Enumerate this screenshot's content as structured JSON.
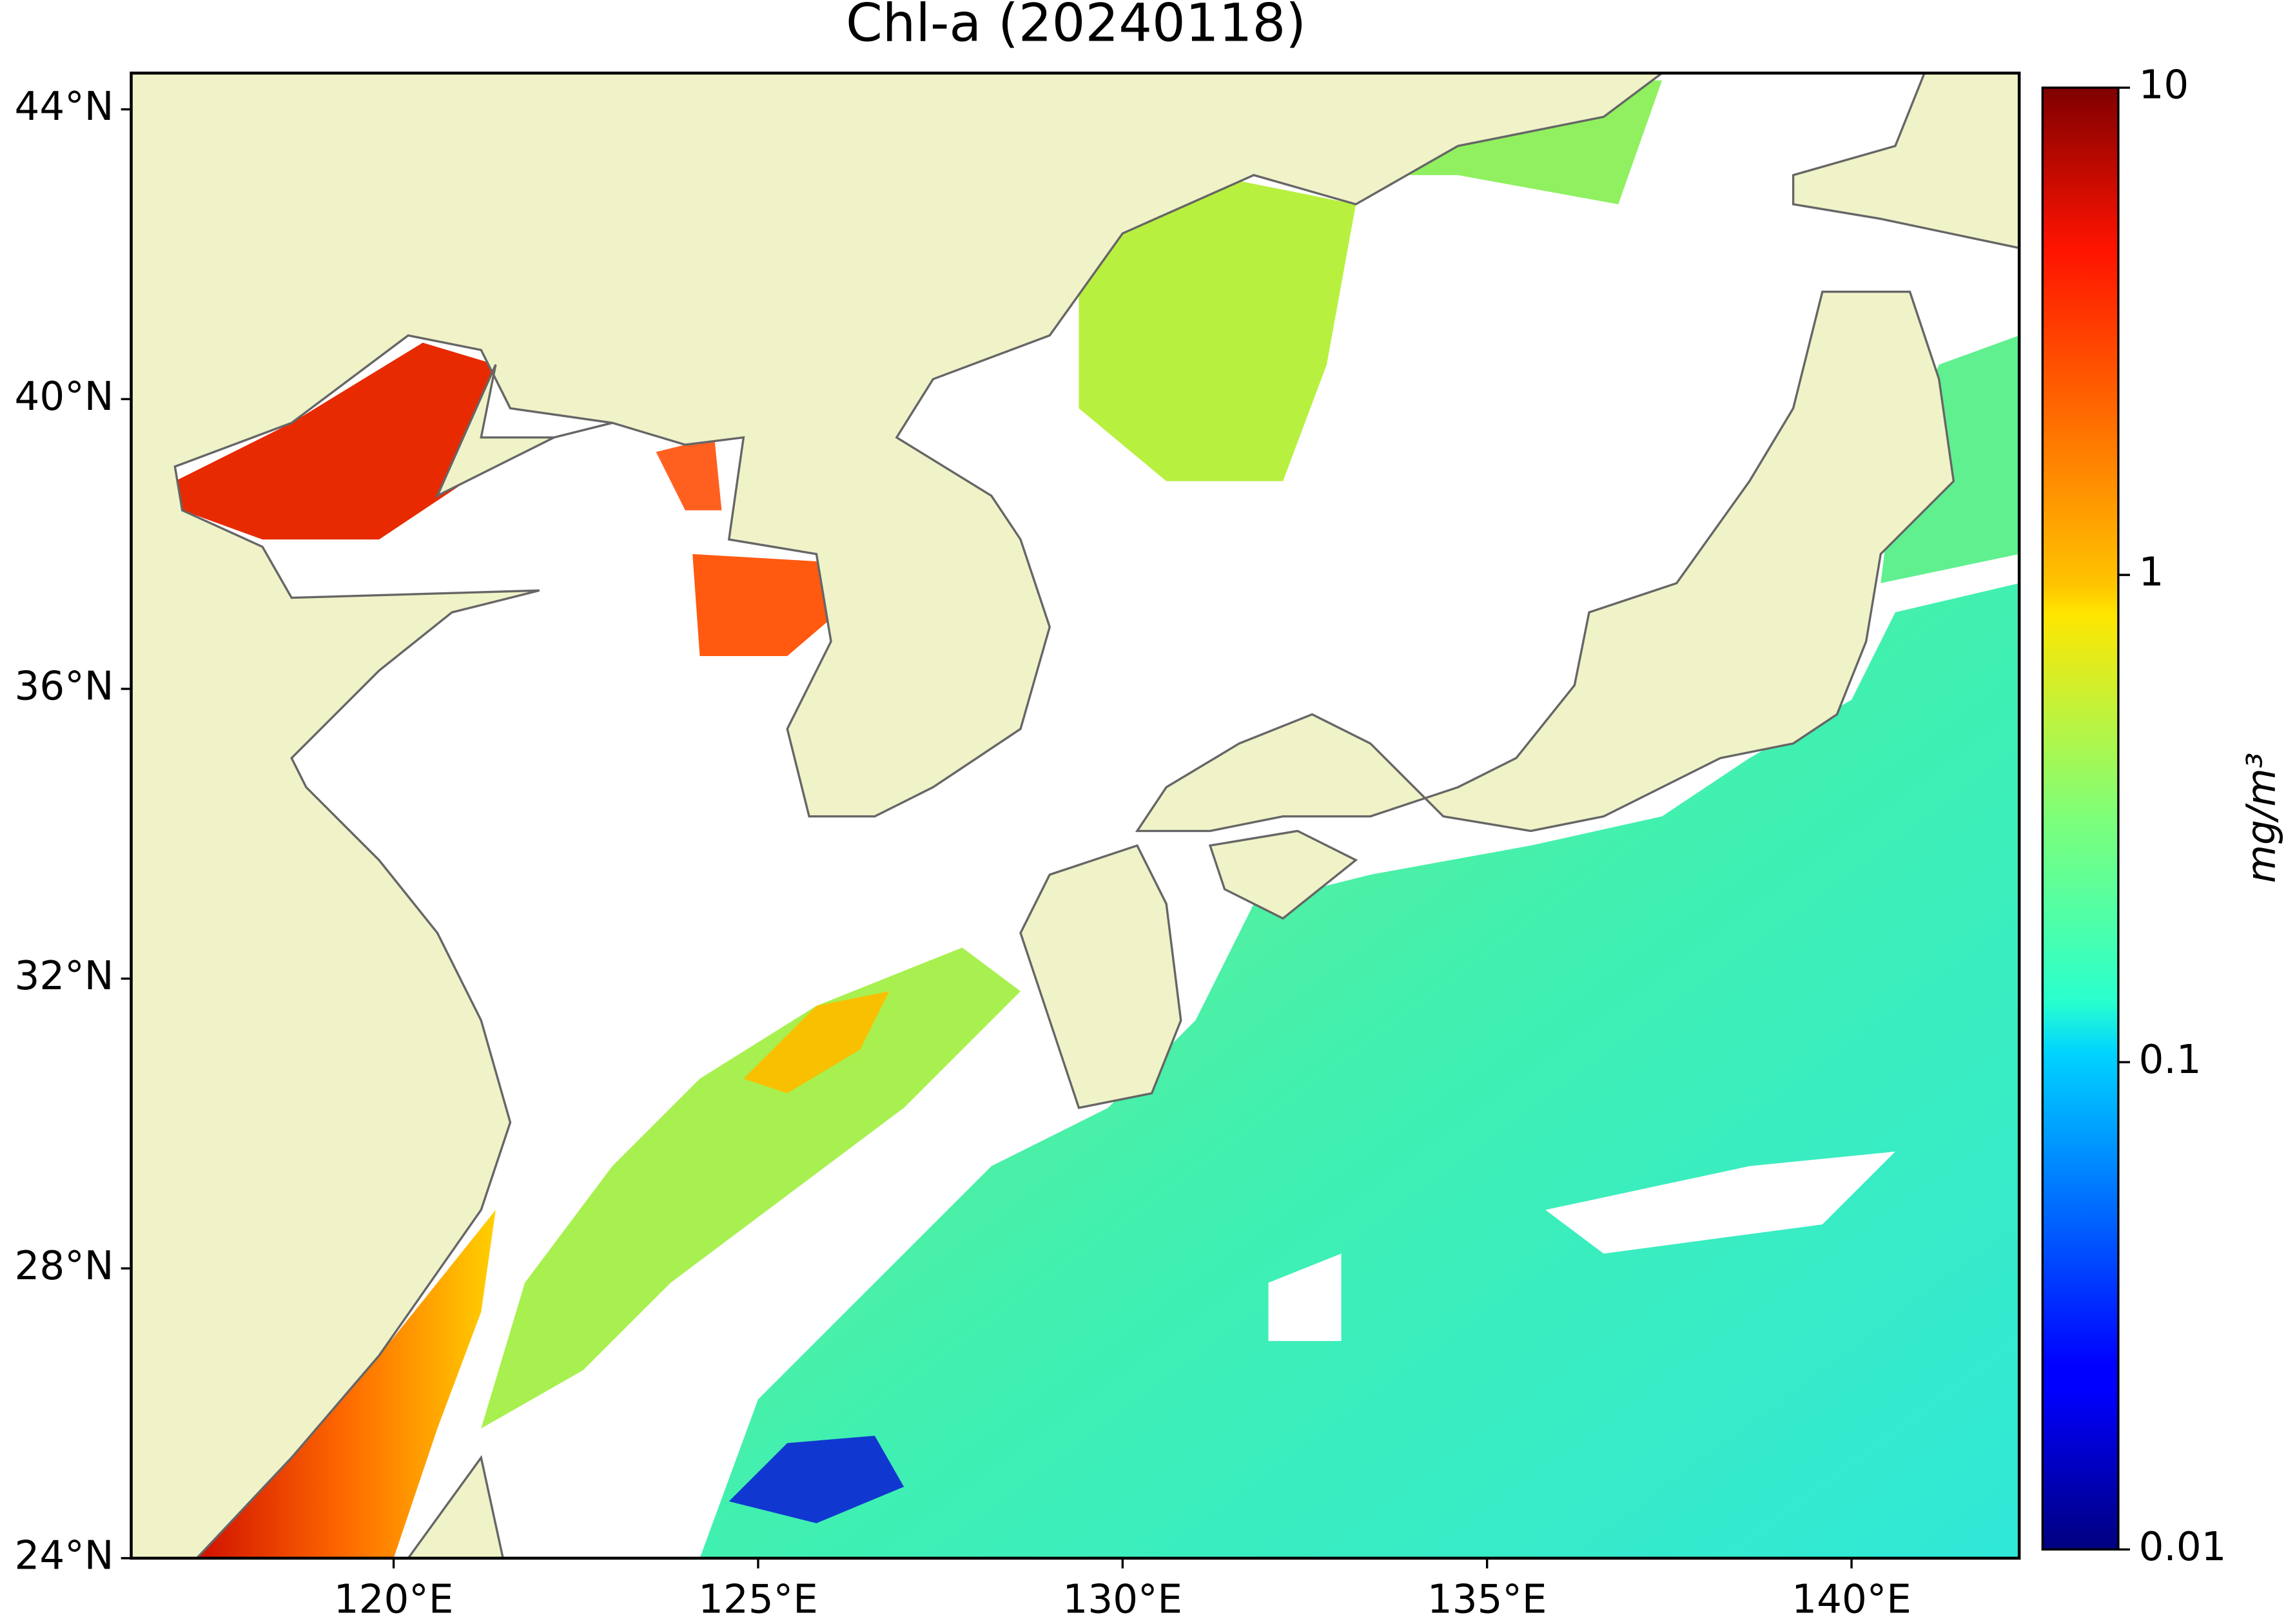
{
  "chart_data": {
    "type": "map",
    "title": "Chl-a (20240118)",
    "xlim": [
      116.4,
      142.3
    ],
    "ylim": [
      24,
      44.5
    ],
    "xticks": [
      {
        "value": 120,
        "label": "120°E"
      },
      {
        "value": 125,
        "label": "125°E"
      },
      {
        "value": 130,
        "label": "130°E"
      },
      {
        "value": 135,
        "label": "135°E"
      },
      {
        "value": 140,
        "label": "140°E"
      }
    ],
    "yticks": [
      {
        "value": 24,
        "label": "24°N"
      },
      {
        "value": 28,
        "label": "28°N"
      },
      {
        "value": 32,
        "label": "32°N"
      },
      {
        "value": 36,
        "label": "36°N"
      },
      {
        "value": 40,
        "label": "40°N"
      },
      {
        "value": 44,
        "label": "44°N"
      }
    ],
    "colormap": "jet",
    "clim": [
      0.01,
      10
    ],
    "cscale": "log",
    "cticks": [
      0.01,
      0.1,
      1,
      10
    ],
    "colorbar_label": "mg/m³",
    "land_color": "#f0f2c8"
  }
}
